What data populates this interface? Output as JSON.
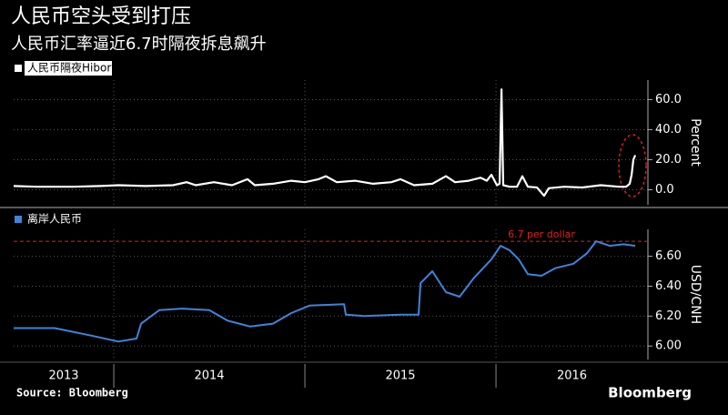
{
  "title": "人民币空头受到打压",
  "subtitle": "人民币汇率逼近6.7时隔夜拆息飙升",
  "source": "Source: Bloomberg",
  "brand": "Bloomberg",
  "chart_data": [
    {
      "type": "line",
      "ylabel": "Percent",
      "xlim": [
        2013.476,
        2016.795
      ],
      "ylim": [
        -10,
        73
      ],
      "yticks": [
        {
          "value": 0,
          "label": "0.0"
        },
        {
          "value": 20,
          "label": "20.0"
        },
        {
          "value": 40,
          "label": "40.0"
        },
        {
          "value": 60,
          "label": "60.0"
        }
      ],
      "grid": true,
      "x": [
        2013.476,
        2013.595,
        2013.786,
        2013.929,
        2014.024,
        2014.167,
        2014.31,
        2014.381,
        2014.429,
        2014.524,
        2014.619,
        2014.7,
        2014.738,
        2014.833,
        2014.929,
        2015.0,
        2015.071,
        2015.11,
        2015.167,
        2015.262,
        2015.357,
        2015.452,
        2015.5,
        2015.571,
        2015.667,
        2015.738,
        2015.786,
        2015.857,
        2015.919,
        2015.952,
        2015.976,
        2016.005,
        2016.019,
        2016.029,
        2016.038,
        2016.071,
        2016.11,
        2016.138,
        2016.167,
        2016.214,
        2016.252,
        2016.276,
        2016.357,
        2016.452,
        2016.548,
        2016.643,
        2016.681,
        2016.7,
        2016.71,
        2016.719,
        2016.729
      ],
      "series": [
        {
          "name": "人民币隔夜Hibor",
          "color": "#ffffff",
          "values": [
            2.5,
            2,
            2,
            2.5,
            3,
            2.5,
            3,
            5,
            3,
            5,
            3,
            7,
            3,
            4,
            6,
            5,
            7,
            9,
            5,
            6,
            4,
            5,
            7,
            3,
            4,
            9,
            5,
            6,
            8,
            6,
            10,
            3,
            4,
            66.8,
            3,
            2,
            2,
            9,
            2,
            1.5,
            -4,
            1,
            2,
            1.5,
            3,
            2,
            2,
            4,
            10,
            20,
            23
          ]
        }
      ]
    },
    {
      "type": "line",
      "ylabel": "USD/CNH",
      "xlim": [
        2013.476,
        2016.795
      ],
      "ylim": [
        5.91,
        6.78
      ],
      "xticks": [
        {
          "value": 2013,
          "label": "2013"
        },
        {
          "value": 2014,
          "label": "2014"
        },
        {
          "value": 2015,
          "label": "2015"
        },
        {
          "value": 2016,
          "label": "2016"
        }
      ],
      "yticks": [
        {
          "value": 6,
          "label": "6.00"
        },
        {
          "value": 6.2,
          "label": "6.20"
        },
        {
          "value": 6.4,
          "label": "6.40"
        },
        {
          "value": 6.6,
          "label": "6.60"
        }
      ],
      "grid": true,
      "ref_line": {
        "value": 6.7,
        "label": "6.7 per dollar",
        "color": "#e0201b"
      },
      "x": [
        2013.476,
        2013.69,
        2013.881,
        2014.024,
        2014.119,
        2014.143,
        2014.238,
        2014.357,
        2014.5,
        2014.595,
        2014.714,
        2014.833,
        2014.929,
        2015.024,
        2015.205,
        2015.214,
        2015.31,
        2015.5,
        2015.595,
        2015.605,
        2015.667,
        2015.738,
        2015.81,
        2015.881,
        2015.976,
        2016.024,
        2016.071,
        2016.119,
        2016.167,
        2016.238,
        2016.31,
        2016.405,
        2016.476,
        2016.524,
        2016.595,
        2016.667,
        2016.729
      ],
      "series": [
        {
          "name": "离岸人民币",
          "color": "#3d84dc",
          "values": [
            6.12,
            6.12,
            6.07,
            6.03,
            6.05,
            6.15,
            6.24,
            6.25,
            6.24,
            6.17,
            6.13,
            6.15,
            6.22,
            6.27,
            6.28,
            6.21,
            6.2,
            6.21,
            6.21,
            6.42,
            6.5,
            6.36,
            6.33,
            6.45,
            6.58,
            6.67,
            6.64,
            6.58,
            6.48,
            6.47,
            6.52,
            6.55,
            6.62,
            6.7,
            6.67,
            6.68,
            6.67
          ]
        }
      ]
    }
  ]
}
